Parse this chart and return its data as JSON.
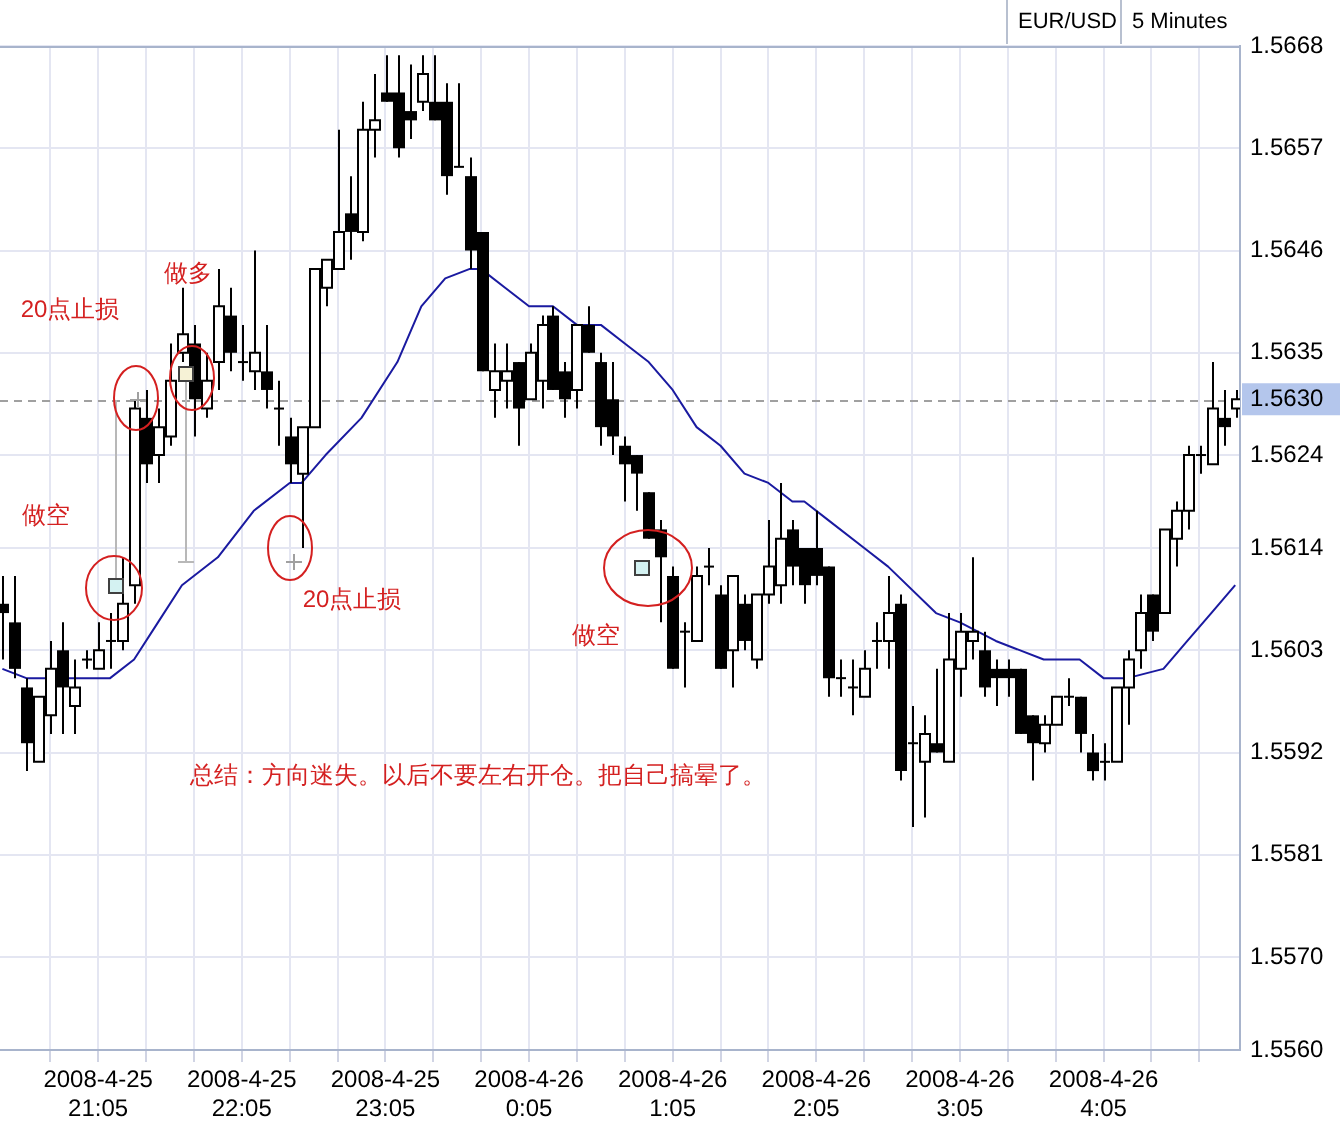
{
  "chart_data": {
    "type": "candlestick",
    "title": "EUR/USD",
    "subtitle": "5 Minutes",
    "color": "#000000",
    "x": [
      "2008-04-25T20:25",
      "2008-04-25T20:30",
      "2008-04-25T20:35",
      "2008-04-25T20:40",
      "2008-04-25T20:45",
      "2008-04-25T20:50",
      "2008-04-25T20:55",
      "2008-04-25T21:00",
      "2008-04-25T21:05",
      "2008-04-25T21:10",
      "2008-04-25T21:15",
      "2008-04-25T21:20",
      "2008-04-25T21:25",
      "2008-04-25T21:30",
      "2008-04-25T21:35",
      "2008-04-25T21:40",
      "2008-04-25T21:45",
      "2008-04-25T21:50",
      "2008-04-25T21:55",
      "2008-04-25T22:00",
      "2008-04-25T22:05",
      "2008-04-25T22:10",
      "2008-04-25T22:15",
      "2008-04-25T22:20",
      "2008-04-25T22:25",
      "2008-04-25T22:30",
      "2008-04-25T22:35",
      "2008-04-25T22:40",
      "2008-04-25T22:45",
      "2008-04-25T22:50",
      "2008-04-25T22:55",
      "2008-04-25T23:00",
      "2008-04-25T23:05",
      "2008-04-25T23:10",
      "2008-04-25T23:15",
      "2008-04-25T23:20",
      "2008-04-25T23:25",
      "2008-04-25T23:30",
      "2008-04-25T23:35",
      "2008-04-25T23:40",
      "2008-04-25T23:45",
      "2008-04-25T23:50",
      "2008-04-25T23:55",
      "2008-04-26T00:00",
      "2008-04-26T00:05",
      "2008-04-26T00:10",
      "2008-04-26T00:15",
      "2008-04-26T00:20",
      "2008-04-26T00:25",
      "2008-04-26T00:30",
      "2008-04-26T00:35",
      "2008-04-26T00:40",
      "2008-04-26T00:45",
      "2008-04-26T00:50",
      "2008-04-26T00:55",
      "2008-04-26T01:00",
      "2008-04-26T01:05",
      "2008-04-26T01:10",
      "2008-04-26T01:15",
      "2008-04-26T01:20",
      "2008-04-26T01:25",
      "2008-04-26T01:30",
      "2008-04-26T01:35",
      "2008-04-26T01:40",
      "2008-04-26T01:45",
      "2008-04-26T01:50",
      "2008-04-26T01:55",
      "2008-04-26T02:00",
      "2008-04-26T02:05",
      "2008-04-26T02:10",
      "2008-04-26T02:15",
      "2008-04-26T02:20",
      "2008-04-26T02:25",
      "2008-04-26T02:30",
      "2008-04-26T02:35",
      "2008-04-26T02:40",
      "2008-04-26T02:45",
      "2008-04-26T02:50",
      "2008-04-26T02:55",
      "2008-04-26T03:00",
      "2008-04-26T03:05",
      "2008-04-26T03:10",
      "2008-04-26T03:15",
      "2008-04-26T03:20",
      "2008-04-26T03:25",
      "2008-04-26T03:30",
      "2008-04-26T03:35",
      "2008-04-26T03:40",
      "2008-04-26T03:45",
      "2008-04-26T03:50",
      "2008-04-26T03:55",
      "2008-04-26T04:00",
      "2008-04-26T04:05",
      "2008-04-26T04:10",
      "2008-04-26T04:15",
      "2008-04-26T04:20",
      "2008-04-26T04:25",
      "2008-04-26T04:30",
      "2008-04-26T04:35",
      "2008-04-26T04:40",
      "2008-04-26T04:45",
      "2008-04-26T04:50",
      "2008-04-26T04:55",
      "2008-04-26T05:00"
    ],
    "ohlc": [
      [
        1.5608,
        1.5611,
        1.5602,
        1.5607
      ],
      [
        1.5606,
        1.5611,
        1.56,
        1.5601
      ],
      [
        1.5599,
        1.56,
        1.559,
        1.5593
      ],
      [
        1.5591,
        1.5598,
        1.5591,
        1.5598
      ],
      [
        1.5596,
        1.5604,
        1.5594,
        1.5601
      ],
      [
        1.5603,
        1.5606,
        1.5594,
        1.5599
      ],
      [
        1.5597,
        1.5602,
        1.5594,
        1.5599
      ],
      [
        1.5602,
        1.5603,
        1.5601,
        1.5602
      ],
      [
        1.5601,
        1.5606,
        1.5601,
        1.5603
      ],
      [
        1.5604,
        1.5607,
        1.5601,
        1.5604
      ],
      [
        1.5604,
        1.5613,
        1.5603,
        1.5608
      ],
      [
        1.561,
        1.563,
        1.5608,
        1.5629
      ],
      [
        1.5628,
        1.5631,
        1.5621,
        1.5623
      ],
      [
        1.5624,
        1.5629,
        1.5621,
        1.5627
      ],
      [
        1.5626,
        1.5636,
        1.5625,
        1.5632
      ],
      [
        1.5635,
        1.5642,
        1.5634,
        1.5637
      ],
      [
        1.5636,
        1.5638,
        1.5626,
        1.563
      ],
      [
        1.5629,
        1.5635,
        1.5628,
        1.5632
      ],
      [
        1.5634,
        1.5644,
        1.5631,
        1.564
      ],
      [
        1.5639,
        1.5642,
        1.5633,
        1.5635
      ],
      [
        1.5634,
        1.5638,
        1.5632,
        1.5634
      ],
      [
        1.5633,
        1.5646,
        1.5631,
        1.5635
      ],
      [
        1.5633,
        1.5638,
        1.5629,
        1.5631
      ],
      [
        1.5629,
        1.5632,
        1.5625,
        1.5629
      ],
      [
        1.5626,
        1.5628,
        1.5621,
        1.5623
      ],
      [
        1.5622,
        1.5627,
        1.5614,
        1.5627
      ],
      [
        1.5627,
        1.5644,
        1.5627,
        1.5644
      ],
      [
        1.5642,
        1.5645,
        1.564,
        1.5645
      ],
      [
        1.5644,
        1.5659,
        1.5644,
        1.5648
      ],
      [
        1.565,
        1.5654,
        1.5645,
        1.5648
      ],
      [
        1.5648,
        1.5662,
        1.5647,
        1.5659
      ],
      [
        1.5659,
        1.5665,
        1.5656,
        1.566
      ],
      [
        1.5663,
        1.5667,
        1.5662,
        1.5662
      ],
      [
        1.5663,
        1.5667,
        1.5656,
        1.5657
      ],
      [
        1.5661,
        1.5666,
        1.5658,
        1.566
      ],
      [
        1.5662,
        1.5667,
        1.5661,
        1.5665
      ],
      [
        1.5662,
        1.5667,
        1.566,
        1.566
      ],
      [
        1.5662,
        1.5664,
        1.5652,
        1.5654
      ],
      [
        1.5655,
        1.5664,
        1.5655,
        1.5655
      ],
      [
        1.5654,
        1.5656,
        1.5644,
        1.5646
      ],
      [
        1.5648,
        1.5648,
        1.5633,
        1.5633
      ],
      [
        1.5631,
        1.5636,
        1.5628,
        1.5633
      ],
      [
        1.5632,
        1.5636,
        1.5629,
        1.5633
      ],
      [
        1.5634,
        1.5634,
        1.5625,
        1.5629
      ],
      [
        1.563,
        1.5636,
        1.563,
        1.5635
      ],
      [
        1.5632,
        1.5639,
        1.5629,
        1.5638
      ],
      [
        1.5639,
        1.564,
        1.5631,
        1.5631
      ],
      [
        1.5633,
        1.5634,
        1.5628,
        1.563
      ],
      [
        1.5631,
        1.5638,
        1.5629,
        1.5638
      ],
      [
        1.5638,
        1.564,
        1.5635,
        1.5635
      ],
      [
        1.5634,
        1.5635,
        1.5625,
        1.5627
      ],
      [
        1.563,
        1.5634,
        1.5624,
        1.5626
      ],
      [
        1.5625,
        1.5626,
        1.5619,
        1.5623
      ],
      [
        1.5624,
        1.5624,
        1.5618,
        1.5622
      ],
      [
        1.562,
        1.562,
        1.5615,
        1.5615
      ],
      [
        1.5616,
        1.5617,
        1.5606,
        1.5613
      ],
      [
        1.5611,
        1.5612,
        1.5601,
        1.5601
      ],
      [
        1.5605,
        1.5606,
        1.5599,
        1.5605
      ],
      [
        1.5604,
        1.5612,
        1.5604,
        1.5611
      ],
      [
        1.5612,
        1.5614,
        1.561,
        1.5612
      ],
      [
        1.5609,
        1.561,
        1.5601,
        1.5601
      ],
      [
        1.5603,
        1.5611,
        1.5599,
        1.5611
      ],
      [
        1.5608,
        1.5609,
        1.5603,
        1.5604
      ],
      [
        1.5602,
        1.5609,
        1.5601,
        1.5609
      ],
      [
        1.5609,
        1.5617,
        1.5608,
        1.5612
      ],
      [
        1.561,
        1.5621,
        1.5608,
        1.5615
      ],
      [
        1.5616,
        1.5617,
        1.561,
        1.5612
      ],
      [
        1.5614,
        1.5614,
        1.5608,
        1.561
      ],
      [
        1.5614,
        1.5618,
        1.561,
        1.5611
      ],
      [
        1.5612,
        1.5612,
        1.5598,
        1.56
      ],
      [
        1.56,
        1.5602,
        1.5598,
        1.56
      ],
      [
        1.5599,
        1.5602,
        1.5596,
        1.5599
      ],
      [
        1.5598,
        1.5603,
        1.5598,
        1.5601
      ],
      [
        1.5604,
        1.5606,
        1.5601,
        1.5604
      ],
      [
        1.5604,
        1.5611,
        1.5601,
        1.5607
      ],
      [
        1.5608,
        1.5609,
        1.5589,
        1.559
      ],
      [
        1.5593,
        1.5597,
        1.5584,
        1.5593
      ],
      [
        1.5591,
        1.5596,
        1.5585,
        1.5594
      ],
      [
        1.5593,
        1.5601,
        1.5592,
        1.5592
      ],
      [
        1.5591,
        1.5607,
        1.5591,
        1.5602
      ],
      [
        1.5601,
        1.5607,
        1.5598,
        1.5605
      ],
      [
        1.5604,
        1.5613,
        1.5602,
        1.5605
      ],
      [
        1.5603,
        1.5605,
        1.5598,
        1.5599
      ],
      [
        1.5601,
        1.5602,
        1.5597,
        1.56
      ],
      [
        1.5601,
        1.5602,
        1.5598,
        1.56
      ],
      [
        1.5601,
        1.5601,
        1.5594,
        1.5594
      ],
      [
        1.5596,
        1.5596,
        1.5589,
        1.5593
      ],
      [
        1.5593,
        1.5596,
        1.5592,
        1.5595
      ],
      [
        1.5595,
        1.5598,
        1.5595,
        1.5598
      ],
      [
        1.5598,
        1.56,
        1.5597,
        1.5598
      ],
      [
        1.5598,
        1.5598,
        1.5592,
        1.5594
      ],
      [
        1.5592,
        1.5594,
        1.5589,
        1.559
      ],
      [
        1.5591,
        1.5593,
        1.5589,
        1.5591
      ],
      [
        1.5591,
        1.5599,
        1.5591,
        1.5599
      ],
      [
        1.5599,
        1.5603,
        1.5595,
        1.5602
      ],
      [
        1.5603,
        1.5609,
        1.5601,
        1.5607
      ],
      [
        1.5609,
        1.5609,
        1.5604,
        1.5605
      ],
      [
        1.5607,
        1.5616,
        1.5607,
        1.5616
      ],
      [
        1.5615,
        1.5619,
        1.5612,
        1.5618
      ],
      [
        1.5618,
        1.5625,
        1.5616,
        1.5624
      ],
      [
        1.5624,
        1.5625,
        1.5622,
        1.5624
      ],
      [
        1.5623,
        1.5634,
        1.5623,
        1.5629
      ],
      [
        1.5628,
        1.5631,
        1.5625,
        1.5627
      ],
      [
        1.5629,
        1.5631,
        1.5628,
        1.563
      ]
    ],
    "series": [
      {
        "type": "line",
        "color": "#1a1aa0",
        "x": [
          "2008-04-25T20:25",
          "2008-04-25T20:35",
          "2008-04-25T20:50",
          "2008-04-25T21:00",
          "2008-04-25T21:10",
          "2008-04-25T21:20",
          "2008-04-25T21:30",
          "2008-04-25T21:40",
          "2008-04-25T21:55",
          "2008-04-25T22:10",
          "2008-04-25T22:25",
          "2008-04-25T22:30",
          "2008-04-25T22:40",
          "2008-04-25T22:55",
          "2008-04-25T23:10",
          "2008-04-25T23:20",
          "2008-04-25T23:30",
          "2008-04-25T23:40",
          "2008-04-25T23:45",
          "2008-04-25T23:55",
          "2008-04-26T00:05",
          "2008-04-26T00:15",
          "2008-04-26T00:25",
          "2008-04-26T00:35",
          "2008-04-26T00:45",
          "2008-04-26T00:55",
          "2008-04-26T01:05",
          "2008-04-26T01:15",
          "2008-04-26T01:25",
          "2008-04-26T01:35",
          "2008-04-26T01:45",
          "2008-04-26T01:55",
          "2008-04-26T02:00",
          "2008-04-26T02:10",
          "2008-04-26T02:25",
          "2008-04-26T02:35",
          "2008-04-26T02:55",
          "2008-04-26T03:05",
          "2008-04-26T03:20",
          "2008-04-26T03:40",
          "2008-04-26T03:55",
          "2008-04-26T04:05",
          "2008-04-26T04:15",
          "2008-04-26T04:30",
          "2008-04-26T04:40",
          "2008-04-26T04:50",
          "2008-04-26T05:00"
        ],
        "values": [
          1.5601,
          1.56,
          1.56,
          1.56,
          1.56,
          1.5602,
          1.5606,
          1.561,
          1.5613,
          1.5618,
          1.5621,
          1.5621,
          1.5624,
          1.5628,
          1.5634,
          1.564,
          1.5643,
          1.5644,
          1.5644,
          1.5642,
          1.564,
          1.564,
          1.5638,
          1.5638,
          1.5636,
          1.5634,
          1.5631,
          1.5627,
          1.5625,
          1.5622,
          1.5621,
          1.5619,
          1.5619,
          1.5617,
          1.5614,
          1.5612,
          1.5607,
          1.5606,
          1.5604,
          1.5602,
          1.5602,
          1.56,
          1.56,
          1.5601,
          1.5604,
          1.5607,
          1.561
        ]
      }
    ],
    "xlim": [
      "2008-04-25T20:24",
      "2008-04-26T05:02"
    ],
    "xticks": [
      {
        "value": "2008-04-25T20:45",
        "label": null
      },
      {
        "value": "2008-04-25T21:05",
        "label": "2008-4-25\n21:05"
      },
      {
        "value": "2008-04-25T21:25",
        "label": null
      },
      {
        "value": "2008-04-25T21:45",
        "label": null
      },
      {
        "value": "2008-04-25T22:05",
        "label": "2008-4-25\n22:05"
      },
      {
        "value": "2008-04-25T22:25",
        "label": null
      },
      {
        "value": "2008-04-25T22:45",
        "label": null
      },
      {
        "value": "2008-04-25T23:05",
        "label": "2008-4-25\n23:05"
      },
      {
        "value": "2008-04-25T23:25",
        "label": null
      },
      {
        "value": "2008-04-25T23:45",
        "label": null
      },
      {
        "value": "2008-04-26T00:05",
        "label": "2008-4-26\n0:05"
      },
      {
        "value": "2008-04-26T00:25",
        "label": null
      },
      {
        "value": "2008-04-26T00:45",
        "label": null
      },
      {
        "value": "2008-04-26T01:05",
        "label": "2008-4-26\n1:05"
      },
      {
        "value": "2008-04-26T01:25",
        "label": null
      },
      {
        "value": "2008-04-26T01:45",
        "label": null
      },
      {
        "value": "2008-04-26T02:05",
        "label": "2008-4-26\n2:05"
      },
      {
        "value": "2008-04-26T02:25",
        "label": null
      },
      {
        "value": "2008-04-26T02:45",
        "label": null
      },
      {
        "value": "2008-04-26T03:05",
        "label": "2008-4-26\n3:05"
      },
      {
        "value": "2008-04-26T03:25",
        "label": null
      },
      {
        "value": "2008-04-26T03:45",
        "label": null
      },
      {
        "value": "2008-04-26T04:05",
        "label": "2008-4-26\n4:05"
      },
      {
        "value": "2008-04-26T04:25",
        "label": null
      },
      {
        "value": "2008-04-26T04:45",
        "label": null
      }
    ],
    "ylim": [
      1.556,
      1.5668
    ],
    "yticks": [
      {
        "value": 1.556,
        "label": "1.5560"
      },
      {
        "value": 1.557,
        "label": "1.5570"
      },
      1.5581,
      1.5592,
      1.5603,
      1.5614,
      1.5624,
      1.5635,
      1.5646,
      1.5657,
      1.5668
    ],
    "grid": true,
    "ref_lines": [
      {
        "axis": "y",
        "value": 1.563,
        "label": "1.5630",
        "color": "#a0a0a0",
        "line_style": "dashed"
      }
    ],
    "annotations": [
      "做空",
      "20点止损",
      "做多",
      "20点止损",
      "做空",
      "总结：方向迷失。以后不要左右开仓。把自己搞晕了。"
    ]
  }
}
